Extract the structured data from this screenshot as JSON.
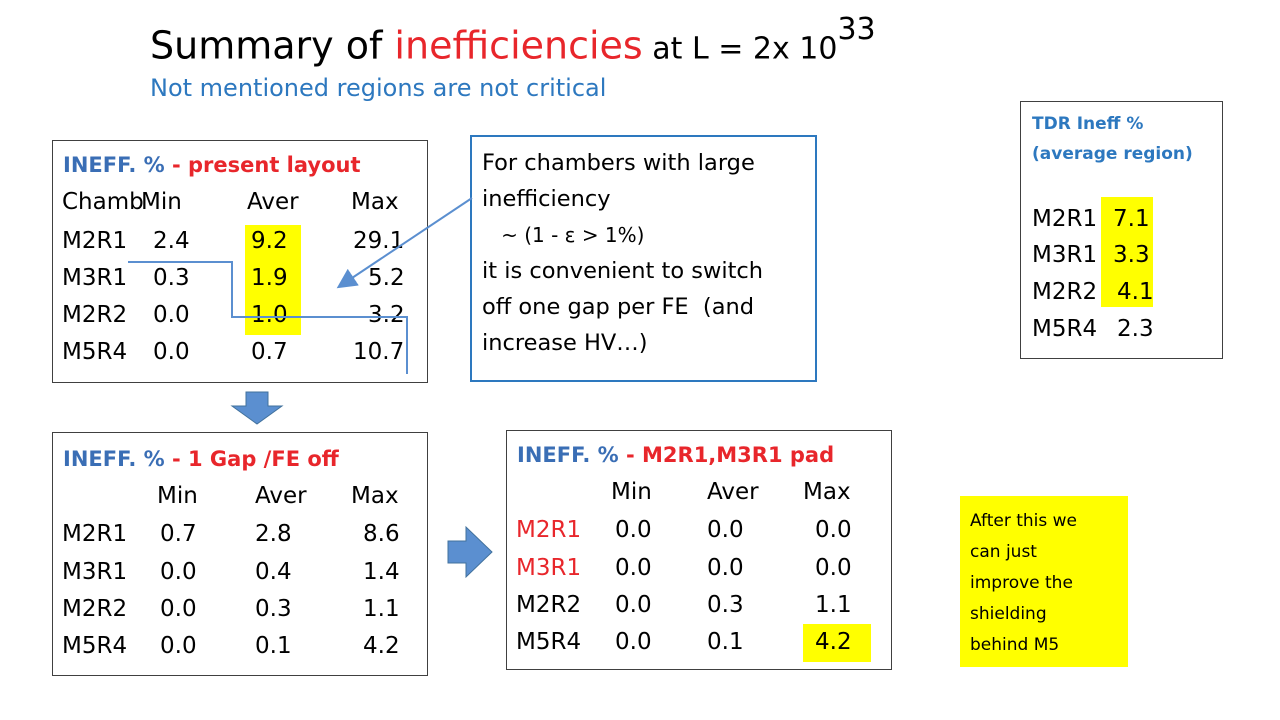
{
  "title": {
    "prefix": "Summary of ",
    "highlight": "inefficiencies",
    "suffix": " at L = 2x 10",
    "exponent": "33",
    "subtitle": "Not mentioned regions are not critical"
  },
  "present_layout": {
    "header_prefix": "INEFF. %",
    "header_label": "  - present layout",
    "columns": [
      "Chamb",
      "Min",
      "Aver",
      "Max"
    ],
    "rows": [
      {
        "name": "M2R1",
        "min": "2.4",
        "aver": "9.2",
        "max": "29.1"
      },
      {
        "name": "M3R1",
        "min": "0.3",
        "aver": "1.9",
        "max": "5.2"
      },
      {
        "name": "M2R2",
        "min": "0.0",
        "aver": "1.0",
        "max": "3.2"
      },
      {
        "name": "M5R4",
        "min": "0.0",
        "aver": "0.7",
        "max": "10.7"
      }
    ]
  },
  "callout": {
    "line1": "For chambers with large",
    "line2": "inefficiency",
    "line3": "   ~ (1 - ε > 1%)",
    "line4": "it is convenient to switch",
    "line5": "off one gap per FE  (and",
    "line6": "increase HV…)"
  },
  "tdr": {
    "label1": "TDR Ineff %",
    "label2": "(average region)",
    "rows": [
      {
        "name": "M2R1",
        "value": "7.1"
      },
      {
        "name": "M3R1",
        "value": "3.3"
      },
      {
        "name": "M2R2",
        "value": "4.1"
      },
      {
        "name": "M5R4",
        "value": "2.3"
      }
    ]
  },
  "gap_off": {
    "header_prefix": "INEFF. %",
    "header_label": "  - 1 Gap /FE off",
    "columns": [
      "Min",
      "Aver",
      "Max"
    ],
    "rows": [
      {
        "name": "M2R1",
        "min": "0.7",
        "aver": "2.8",
        "max": "8.6"
      },
      {
        "name": "M3R1",
        "min": "0.0",
        "aver": "0.4",
        "max": "1.4"
      },
      {
        "name": "M2R2",
        "min": "0.0",
        "aver": "0.3",
        "max": "1.1"
      },
      {
        "name": "M5R4",
        "min": "0.0",
        "aver": "0.1",
        "max": "4.2"
      }
    ]
  },
  "pad": {
    "header_prefix": "INEFF. %",
    "header_label": " - M2R1,M3R1 pad",
    "columns": [
      "Min",
      "Aver",
      "Max"
    ],
    "rows": [
      {
        "name": "M2R1",
        "min": "0.0",
        "aver": "0.0",
        "max": "0.0"
      },
      {
        "name": "M3R1",
        "min": "0.0",
        "aver": "0.0",
        "max": "0.0"
      },
      {
        "name": "M2R2",
        "min": "0.0",
        "aver": "0.3",
        "max": "1.1"
      },
      {
        "name": "M5R4",
        "min": "0.0",
        "aver": "0.1",
        "max": "4.2"
      }
    ]
  },
  "note": {
    "line1": "After this we",
    "line2": "can just",
    "line3": "improve the",
    "line4": "shielding",
    "line5": "behind M5"
  },
  "colors": {
    "accent_red": "#e8262b",
    "accent_blue": "#2d78bf",
    "highlight_yellow": "#ffff00"
  }
}
